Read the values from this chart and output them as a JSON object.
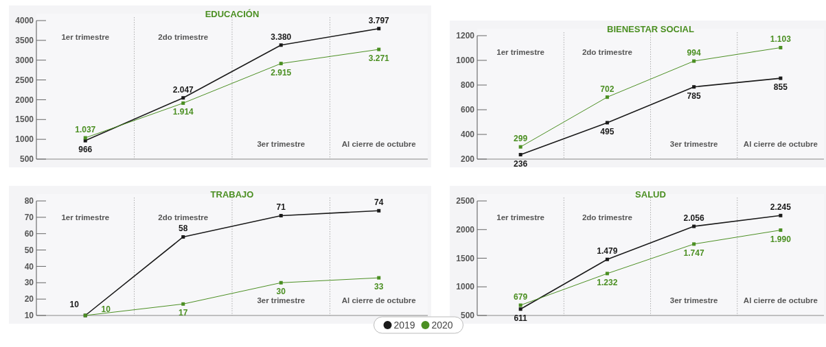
{
  "chart_data": [
    {
      "type": "line",
      "title": "EDUCACIÓN",
      "categories": [
        "1er trimestre",
        "2do trimestre",
        "3er trimestre",
        "Al cierre de octubre"
      ],
      "ylim": [
        500,
        4000
      ],
      "yticks": [
        500,
        1000,
        1500,
        2000,
        2500,
        3000,
        3500,
        4000
      ],
      "marker": "square",
      "legend": "bottom",
      "series": [
        {
          "name": "2019",
          "color": "#1a1a1a",
          "values": [
            966,
            2047,
            3380,
            3797
          ],
          "value_labels": [
            "966",
            "2.047",
            "3.380",
            "3.797"
          ]
        },
        {
          "name": "2020",
          "color": "#4b8f22",
          "values": [
            1037,
            1914,
            2915,
            3271
          ],
          "value_labels": [
            "1.037",
            "1.914",
            "2.915",
            "3.271"
          ]
        }
      ]
    },
    {
      "type": "line",
      "title": "BIENESTAR SOCIAL",
      "categories": [
        "1er trimestre",
        "2do trimestre",
        "3er trimestre",
        "Al cierre de octubre"
      ],
      "ylim": [
        200,
        1200
      ],
      "yticks": [
        200,
        400,
        600,
        800,
        1000,
        1200
      ],
      "marker": "square",
      "legend": "bottom",
      "series": [
        {
          "name": "2019",
          "color": "#1a1a1a",
          "values": [
            236,
            495,
            785,
            855
          ],
          "value_labels": [
            "236",
            "495",
            "785",
            "855"
          ]
        },
        {
          "name": "2020",
          "color": "#4b8f22",
          "values": [
            299,
            702,
            994,
            1103
          ],
          "value_labels": [
            "299",
            "702",
            "994",
            "1.103"
          ]
        }
      ]
    },
    {
      "type": "line",
      "title": "TRABAJO",
      "categories": [
        "1er trimestre",
        "2do trimestre",
        "3er trimestre",
        "Al cierre de octubre"
      ],
      "ylim": [
        10,
        80
      ],
      "yticks": [
        10,
        20,
        30,
        40,
        50,
        60,
        70,
        80
      ],
      "marker": "square",
      "legend": "bottom",
      "series": [
        {
          "name": "2019",
          "color": "#1a1a1a",
          "values": [
            10,
            58,
            71,
            74
          ],
          "value_labels": [
            "10",
            "58",
            "71",
            "74"
          ]
        },
        {
          "name": "2020",
          "color": "#4b8f22",
          "values": [
            10,
            17,
            30,
            33
          ],
          "value_labels": [
            "10",
            "17",
            "30",
            "33"
          ]
        }
      ]
    },
    {
      "type": "line",
      "title": "SALUD",
      "categories": [
        "1er trimestre",
        "2do trimestre",
        "3er trimestre",
        "Al cierre de octubre"
      ],
      "ylim": [
        500,
        2500
      ],
      "yticks": [
        500,
        1000,
        1500,
        2000,
        2500
      ],
      "marker": "square",
      "legend": "bottom",
      "series": [
        {
          "name": "2019",
          "color": "#1a1a1a",
          "values": [
            611,
            1479,
            2056,
            2245
          ],
          "value_labels": [
            "611",
            "1.479",
            "2.056",
            "2.245"
          ]
        },
        {
          "name": "2020",
          "color": "#4b8f22",
          "values": [
            679,
            1232,
            1747,
            1990
          ],
          "value_labels": [
            "679",
            "1.232",
            "1.747",
            "1.990"
          ]
        }
      ]
    }
  ]
}
